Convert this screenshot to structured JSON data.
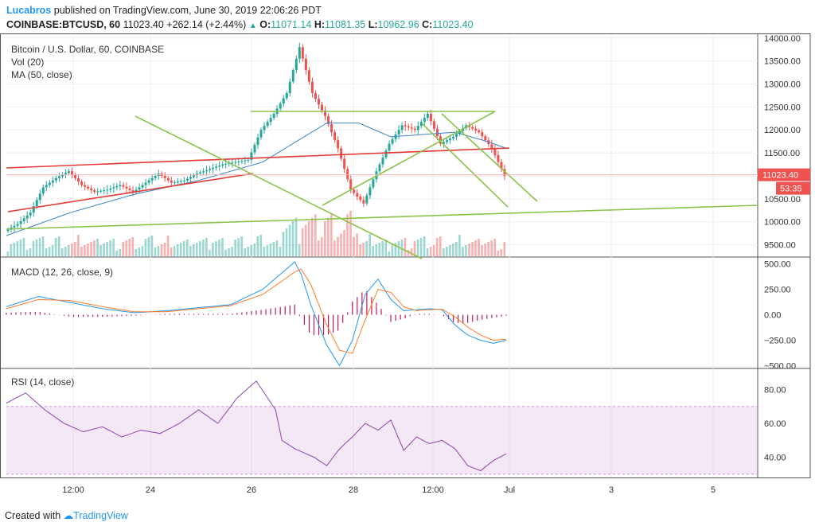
{
  "header": {
    "author": "Lucabros",
    "published": "published on TradingView.com, June 30, 2019 22:06:26 PDT",
    "symbol": "COINBASE:BTCUSD, 60",
    "last": "11023.40",
    "arrow": "▲",
    "change": "+262.14 (+2.44%)",
    "o_label": "O:",
    "o": "11071.14",
    "h_label": "H:",
    "h": "11081.35",
    "l_label": "L:",
    "l": "10962.96",
    "c_label": "C:",
    "c": "11023.40"
  },
  "footer": {
    "created_with": "Created with",
    "brand": "TradingView"
  },
  "chart_data": [
    {
      "type": "line",
      "title": "Bitcoin / U.S. Dollar, 60, COINBASE",
      "indicators": [
        "Vol (20)",
        "MA (50, close)"
      ],
      "x_ticks": [
        "12:00",
        "24",
        "26",
        "28",
        "12:00",
        "Jul",
        "3",
        "5"
      ],
      "y_ticks": [
        "14000.00",
        "13500.00",
        "13000.00",
        "12500.00",
        "12000.00",
        "11500.00",
        "11000.00",
        "10500.00",
        "10000.00",
        "9500.00"
      ],
      "ylim": [
        9250,
        14100
      ],
      "last_price_label": "11023.40",
      "countdown_label": "53:35",
      "colors": {
        "up": "#26a69a",
        "down": "#ef5350",
        "ma": "#3b82c4",
        "trend_red": "#e53935",
        "trend_green": "#8bc34a"
      },
      "series": [
        {
          "name": "BTCUSD close",
          "x": [
            0,
            4,
            8,
            12,
            16,
            20,
            24,
            28,
            32,
            36,
            40,
            44,
            48,
            52,
            56,
            60,
            64,
            68,
            72,
            76,
            80,
            84,
            88,
            92,
            96,
            100,
            104,
            108,
            112,
            116,
            120,
            124,
            128,
            132,
            136,
            140,
            144,
            148,
            152,
            156
          ],
          "values": [
            9800,
            9950,
            10200,
            10750,
            10950,
            11100,
            10800,
            10650,
            10700,
            10800,
            10650,
            10850,
            11050,
            10850,
            10900,
            11050,
            11150,
            11250,
            11300,
            11350,
            12000,
            12350,
            12800,
            13800,
            12800,
            12300,
            11600,
            10700,
            10400,
            11100,
            11700,
            12100,
            12000,
            12350,
            11700,
            11850,
            12100,
            11950,
            11600,
            11000
          ]
        },
        {
          "name": "MA (50, close)",
          "x": [
            0,
            20,
            40,
            60,
            80,
            100,
            110,
            120,
            130,
            140,
            150,
            156
          ],
          "values": [
            9700,
            10200,
            10600,
            10900,
            11300,
            12150,
            12150,
            11850,
            11900,
            11950,
            11750,
            11600
          ]
        }
      ]
    },
    {
      "type": "line",
      "title": "MACD (12, 26, close, 9)",
      "y_ticks": [
        "500.00",
        "250.00",
        "0.00",
        "−250.00",
        "−500.00"
      ],
      "ylim": [
        -520,
        560
      ],
      "series": [
        {
          "name": "MACD",
          "x": [
            0,
            10,
            20,
            30,
            40,
            50,
            60,
            70,
            80,
            90,
            92,
            95,
            100,
            104,
            108,
            112,
            116,
            120,
            124,
            128,
            132,
            136,
            140,
            144,
            148,
            152,
            156
          ],
          "values": [
            80,
            180,
            120,
            60,
            20,
            40,
            70,
            100,
            250,
            520,
            400,
            100,
            -300,
            -500,
            -250,
            200,
            350,
            150,
            40,
            50,
            60,
            50,
            -100,
            -200,
            -250,
            -280,
            -250
          ]
        },
        {
          "name": "Signal",
          "x": [
            0,
            10,
            20,
            30,
            40,
            50,
            60,
            70,
            80,
            90,
            92,
            95,
            100,
            104,
            108,
            112,
            116,
            120,
            124,
            128,
            132,
            136,
            140,
            144,
            148,
            152,
            156
          ],
          "values": [
            60,
            150,
            140,
            80,
            30,
            30,
            60,
            90,
            200,
            420,
            450,
            300,
            -100,
            -350,
            -380,
            -50,
            250,
            220,
            80,
            40,
            50,
            55,
            -20,
            -120,
            -200,
            -250,
            -240
          ]
        }
      ]
    },
    {
      "type": "line",
      "title": "RSI (14, close)",
      "y_ticks": [
        "80.00",
        "60.00",
        "40.00"
      ],
      "ylim": [
        28,
        92
      ],
      "band": [
        30,
        70
      ],
      "series": [
        {
          "name": "RSI",
          "x": [
            0,
            6,
            12,
            18,
            24,
            30,
            36,
            42,
            48,
            54,
            60,
            66,
            72,
            78,
            84,
            86,
            90,
            96,
            100,
            104,
            108,
            112,
            116,
            120,
            124,
            128,
            132,
            136,
            140,
            144,
            148,
            152,
            156
          ],
          "values": [
            72,
            78,
            68,
            60,
            55,
            58,
            52,
            56,
            54,
            60,
            68,
            60,
            75,
            85,
            68,
            50,
            45,
            40,
            35,
            45,
            52,
            60,
            56,
            62,
            44,
            52,
            48,
            50,
            45,
            35,
            32,
            38,
            42
          ]
        }
      ]
    }
  ]
}
